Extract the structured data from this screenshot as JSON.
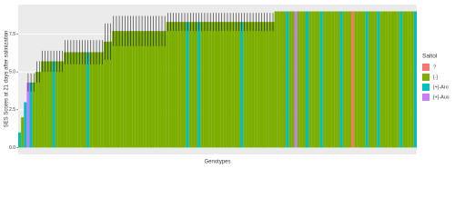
{
  "chart_data": {
    "type": "bar",
    "y_label": "SES Scores at 21 days after salinization",
    "x_label": "Genotypes",
    "ylim": [
      -0.45,
      9.45
    ],
    "yticks": [
      {
        "value": 0,
        "label": "0.0"
      },
      2.5,
      {
        "value": 5,
        "label": "5.0"
      },
      7.5
    ],
    "grid": true,
    "legend": {
      "title": "Saltol",
      "position": "right",
      "entries": [
        {
          "name": "?",
          "color": "#F8766D"
        },
        {
          "name": "[-]",
          "color": "#7CAE00"
        },
        {
          "name": "[+]-Aro",
          "color": "#00BFC4"
        },
        {
          "name": "[+]-Aus",
          "color": "#C77CFF"
        }
      ]
    },
    "values": [
      1,
      2,
      3,
      4.3,
      4.3,
      4.3,
      5,
      5,
      5.7,
      5.7,
      5.7,
      5.7,
      5.7,
      5.7,
      5.7,
      5.7,
      6.3,
      6.3,
      6.3,
      6.3,
      6.3,
      6.3,
      6.3,
      6.3,
      6.3,
      6.3,
      6.3,
      6.3,
      6.3,
      6.3,
      7,
      7,
      7,
      7.7,
      7.7,
      7.7,
      7.7,
      7.7,
      7.7,
      7.7,
      7.7,
      7.7,
      7.7,
      7.7,
      7.7,
      7.7,
      7.7,
      7.7,
      7.7,
      7.7,
      7.7,
      7.7,
      8.3,
      8.3,
      8.3,
      8.3,
      8.3,
      8.3,
      8.3,
      8.3,
      8.3,
      8.3,
      8.3,
      8.3,
      8.3,
      8.3,
      8.3,
      8.3,
      8.3,
      8.3,
      8.3,
      8.3,
      8.3,
      8.3,
      8.3,
      8.3,
      8.3,
      8.3,
      8.3,
      8.3,
      8.3,
      8.3,
      8.3,
      8.3,
      8.3,
      8.3,
      8.3,
      8.3,
      8.3,
      8.3,
      9,
      9,
      9,
      9,
      9,
      9,
      9,
      9,
      9,
      9,
      9,
      9,
      9,
      9,
      9,
      9,
      9,
      9,
      9,
      9,
      9,
      9,
      9,
      9,
      9,
      9,
      9,
      9,
      9,
      9,
      9,
      9,
      9,
      9,
      9,
      9,
      9,
      9,
      9,
      9,
      9,
      9,
      9,
      9,
      9,
      9,
      9,
      9,
      9,
      9
    ],
    "errors": [
      0,
      0,
      0,
      0.6,
      0.6,
      0.6,
      0.7,
      0.7,
      0.7,
      0.7,
      0.7,
      0.7,
      0.7,
      0.7,
      0.7,
      0.7,
      0.8,
      0.8,
      0.8,
      0.8,
      0.8,
      0.8,
      0.8,
      0.8,
      0.8,
      0.8,
      0.8,
      0.8,
      0.8,
      0.8,
      1.2,
      1.2,
      1.2,
      1,
      1,
      1,
      1,
      1,
      1,
      1,
      1,
      1,
      1,
      1,
      1,
      1,
      1,
      1,
      1,
      1,
      1,
      1,
      0.6,
      0.6,
      0.6,
      0.6,
      0.6,
      0.6,
      0.6,
      0.6,
      0.6,
      0.6,
      0.6,
      0.6,
      0.6,
      0.6,
      0.6,
      0.6,
      0.6,
      0.6,
      0.6,
      0.6,
      0.6,
      0.6,
      0.6,
      0.6,
      0.6,
      0.6,
      0.6,
      0.6,
      0.6,
      0.6,
      0.6,
      0.6,
      0.6,
      0.6,
      0.6,
      0.6,
      0.6,
      0.6,
      0,
      0,
      0,
      0,
      0,
      0,
      0,
      0,
      0,
      0,
      0,
      0,
      0,
      0,
      0,
      0,
      0,
      0,
      0,
      0,
      0,
      0,
      0,
      0,
      0,
      0,
      0,
      0,
      0,
      0,
      0,
      0,
      0,
      0,
      0,
      0,
      0,
      0,
      0,
      0,
      0,
      0,
      0,
      0,
      0,
      0,
      0,
      0,
      0,
      0
    ],
    "groups": [
      2,
      1,
      2,
      3,
      2,
      1,
      1,
      1,
      1,
      1,
      1,
      1,
      2,
      1,
      1,
      1,
      1,
      1,
      1,
      1,
      1,
      1,
      1,
      1,
      2,
      1,
      1,
      1,
      1,
      1,
      1,
      1,
      1,
      1,
      1,
      1,
      1,
      1,
      1,
      1,
      1,
      1,
      1,
      1,
      1,
      1,
      1,
      1,
      1,
      1,
      1,
      1,
      1,
      1,
      1,
      1,
      1,
      1,
      1,
      2,
      1,
      1,
      1,
      2,
      1,
      1,
      1,
      1,
      1,
      1,
      1,
      1,
      1,
      1,
      1,
      1,
      1,
      1,
      2,
      1,
      1,
      1,
      1,
      1,
      1,
      1,
      1,
      1,
      1,
      1,
      1,
      1,
      1,
      1,
      2,
      1,
      1,
      3,
      1,
      1,
      1,
      2,
      1,
      1,
      1,
      1,
      2,
      1,
      1,
      1,
      1,
      1,
      1,
      2,
      1,
      1,
      1,
      0,
      1,
      1,
      1,
      1,
      2,
      1,
      1,
      1,
      2,
      1,
      1,
      1,
      1,
      1,
      1,
      1,
      2,
      1,
      1,
      1,
      1,
      2
    ]
  }
}
